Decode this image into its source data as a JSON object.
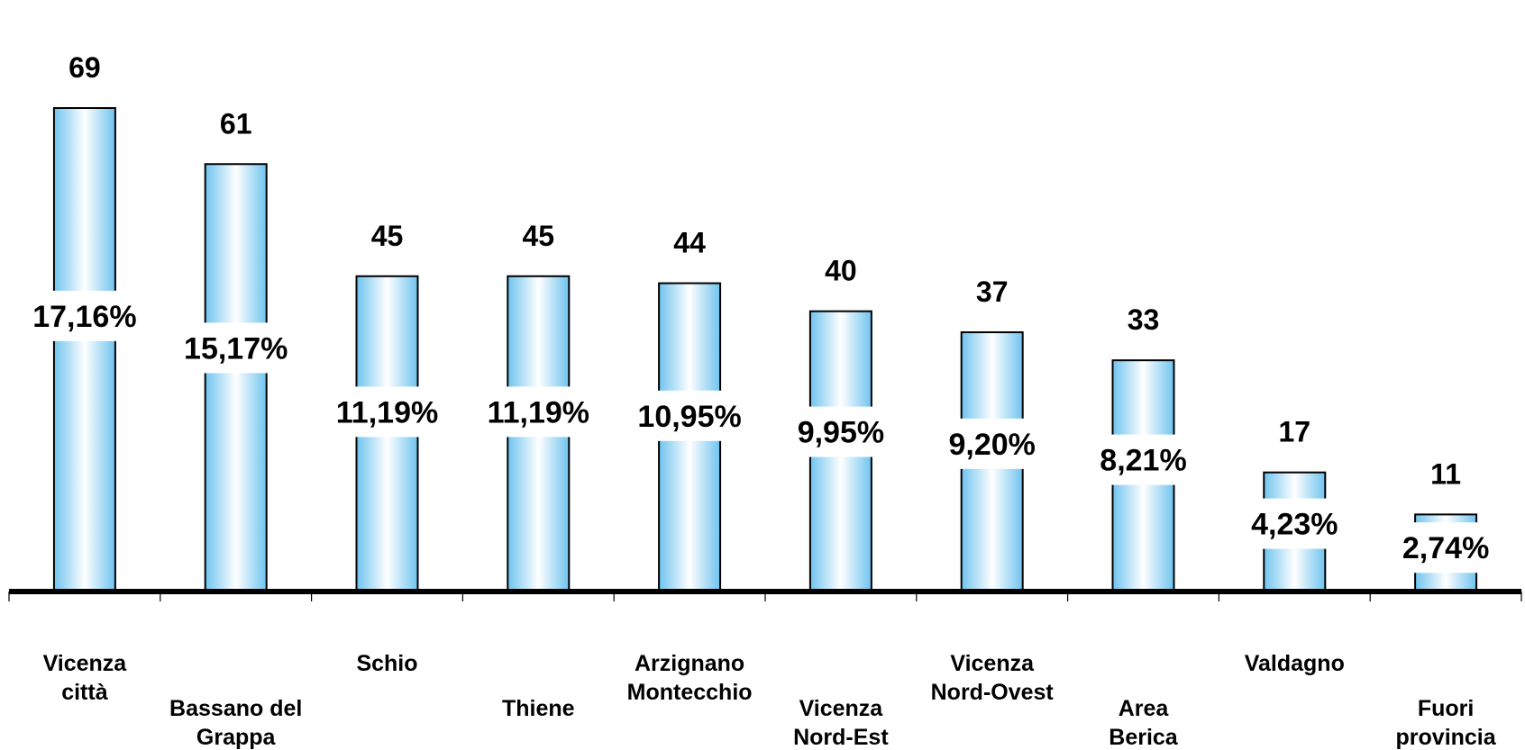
{
  "chart_data": {
    "type": "bar",
    "categories": [
      [
        "Vicenza",
        "città"
      ],
      [
        "Bassano del",
        "Grappa"
      ],
      [
        "Schio"
      ],
      [
        "Thiene"
      ],
      [
        "Arzignano",
        "Montecchio"
      ],
      [
        "Vicenza",
        "Nord-Est"
      ],
      [
        "Vicenza",
        "Nord-Ovest"
      ],
      [
        "Area",
        "Berica"
      ],
      [
        "Valdagno"
      ],
      [
        "Fuori",
        "provincia"
      ]
    ],
    "values": [
      69,
      61,
      45,
      45,
      44,
      40,
      37,
      33,
      17,
      11
    ],
    "percent_labels": [
      "17,16%",
      "15,17%",
      "11,19%",
      "11,19%",
      "10,95%",
      "9,95%",
      "9,20%",
      "8,21%",
      "4,23%",
      "2,74%"
    ],
    "ylim": [
      0,
      69
    ],
    "grid": false,
    "legend": "none",
    "colors": {
      "bar_edge": "#6fc3ef",
      "bar_center": "#ffffff",
      "bar_outline": "#000000",
      "axis": "#000000"
    }
  }
}
